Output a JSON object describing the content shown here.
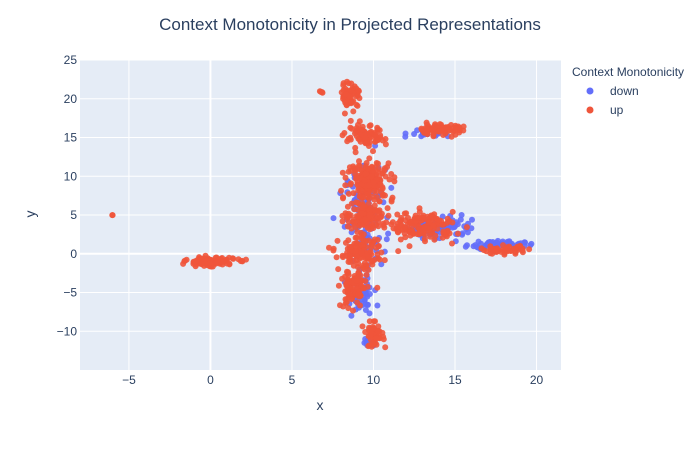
{
  "chart_data": {
    "type": "scatter",
    "title": "Context Monotonicity in Projected Representations",
    "xlabel": "x",
    "ylabel": "y",
    "xlim": [
      -8,
      21.5
    ],
    "ylim": [
      -15,
      25
    ],
    "xticks": [
      -5,
      0,
      5,
      10,
      15,
      20
    ],
    "yticks": [
      -10,
      -5,
      0,
      5,
      10,
      15,
      20,
      25
    ],
    "grid": true,
    "legend": {
      "title": "Context Monotonicity",
      "placement": "top-right outside",
      "entries": [
        "down",
        "up"
      ]
    },
    "colors": {
      "down": "#636efa",
      "up": "#ef553b",
      "plot_bg": "#e5ecf6",
      "grid": "#ffffff",
      "text": "#2a3f5f"
    },
    "series": [
      {
        "name": "down",
        "clusters": [
          {
            "center": [
              9.5,
              5
            ],
            "spread": [
              1.2,
              6
            ],
            "count": 140
          },
          {
            "center": [
              14,
              3.5
            ],
            "spread": [
              2,
              1.5
            ],
            "count": 90
          },
          {
            "center": [
              17.5,
              1.2
            ],
            "spread": [
              1.8,
              0.5
            ],
            "count": 60
          },
          {
            "center": [
              9.2,
              -5
            ],
            "spread": [
              0.8,
              3
            ],
            "count": 60
          },
          {
            "center": [
              9.8,
              -11.5
            ],
            "spread": [
              0.5,
              0.6
            ],
            "count": 20
          },
          {
            "center": [
              13.2,
              15.5
            ],
            "spread": [
              1,
              0.6
            ],
            "count": 20
          }
        ]
      },
      {
        "name": "up",
        "clusters": [
          {
            "center": [
              -6,
              5
            ],
            "spread": [
              0.05,
              0.05
            ],
            "count": 2
          },
          {
            "center": [
              0,
              -1
            ],
            "spread": [
              1.5,
              0.5
            ],
            "count": 120
          },
          {
            "center": [
              6.8,
              20.8
            ],
            "spread": [
              0.1,
              0.15
            ],
            "count": 4
          },
          {
            "center": [
              8.6,
              20.5
            ],
            "spread": [
              0.6,
              1.6
            ],
            "count": 60
          },
          {
            "center": [
              9.5,
              15
            ],
            "spread": [
              1.2,
              1.5
            ],
            "count": 80
          },
          {
            "center": [
              14,
              16
            ],
            "spread": [
              1.5,
              0.7
            ],
            "count": 70
          },
          {
            "center": [
              9.8,
              9.5
            ],
            "spread": [
              1.4,
              2.5
            ],
            "count": 160
          },
          {
            "center": [
              9.5,
              5
            ],
            "spread": [
              1.3,
              2
            ],
            "count": 120
          },
          {
            "center": [
              13,
              3.5
            ],
            "spread": [
              2,
              1.8
            ],
            "count": 150
          },
          {
            "center": [
              18,
              0.5
            ],
            "spread": [
              1.5,
              0.5
            ],
            "count": 50
          },
          {
            "center": [
              9.2,
              0
            ],
            "spread": [
              1.3,
              2
            ],
            "count": 120
          },
          {
            "center": [
              8.8,
              -4.5
            ],
            "spread": [
              0.8,
              2.5
            ],
            "count": 100
          },
          {
            "center": [
              10,
              -10.5
            ],
            "spread": [
              0.6,
              1.5
            ],
            "count": 50
          }
        ]
      }
    ]
  }
}
